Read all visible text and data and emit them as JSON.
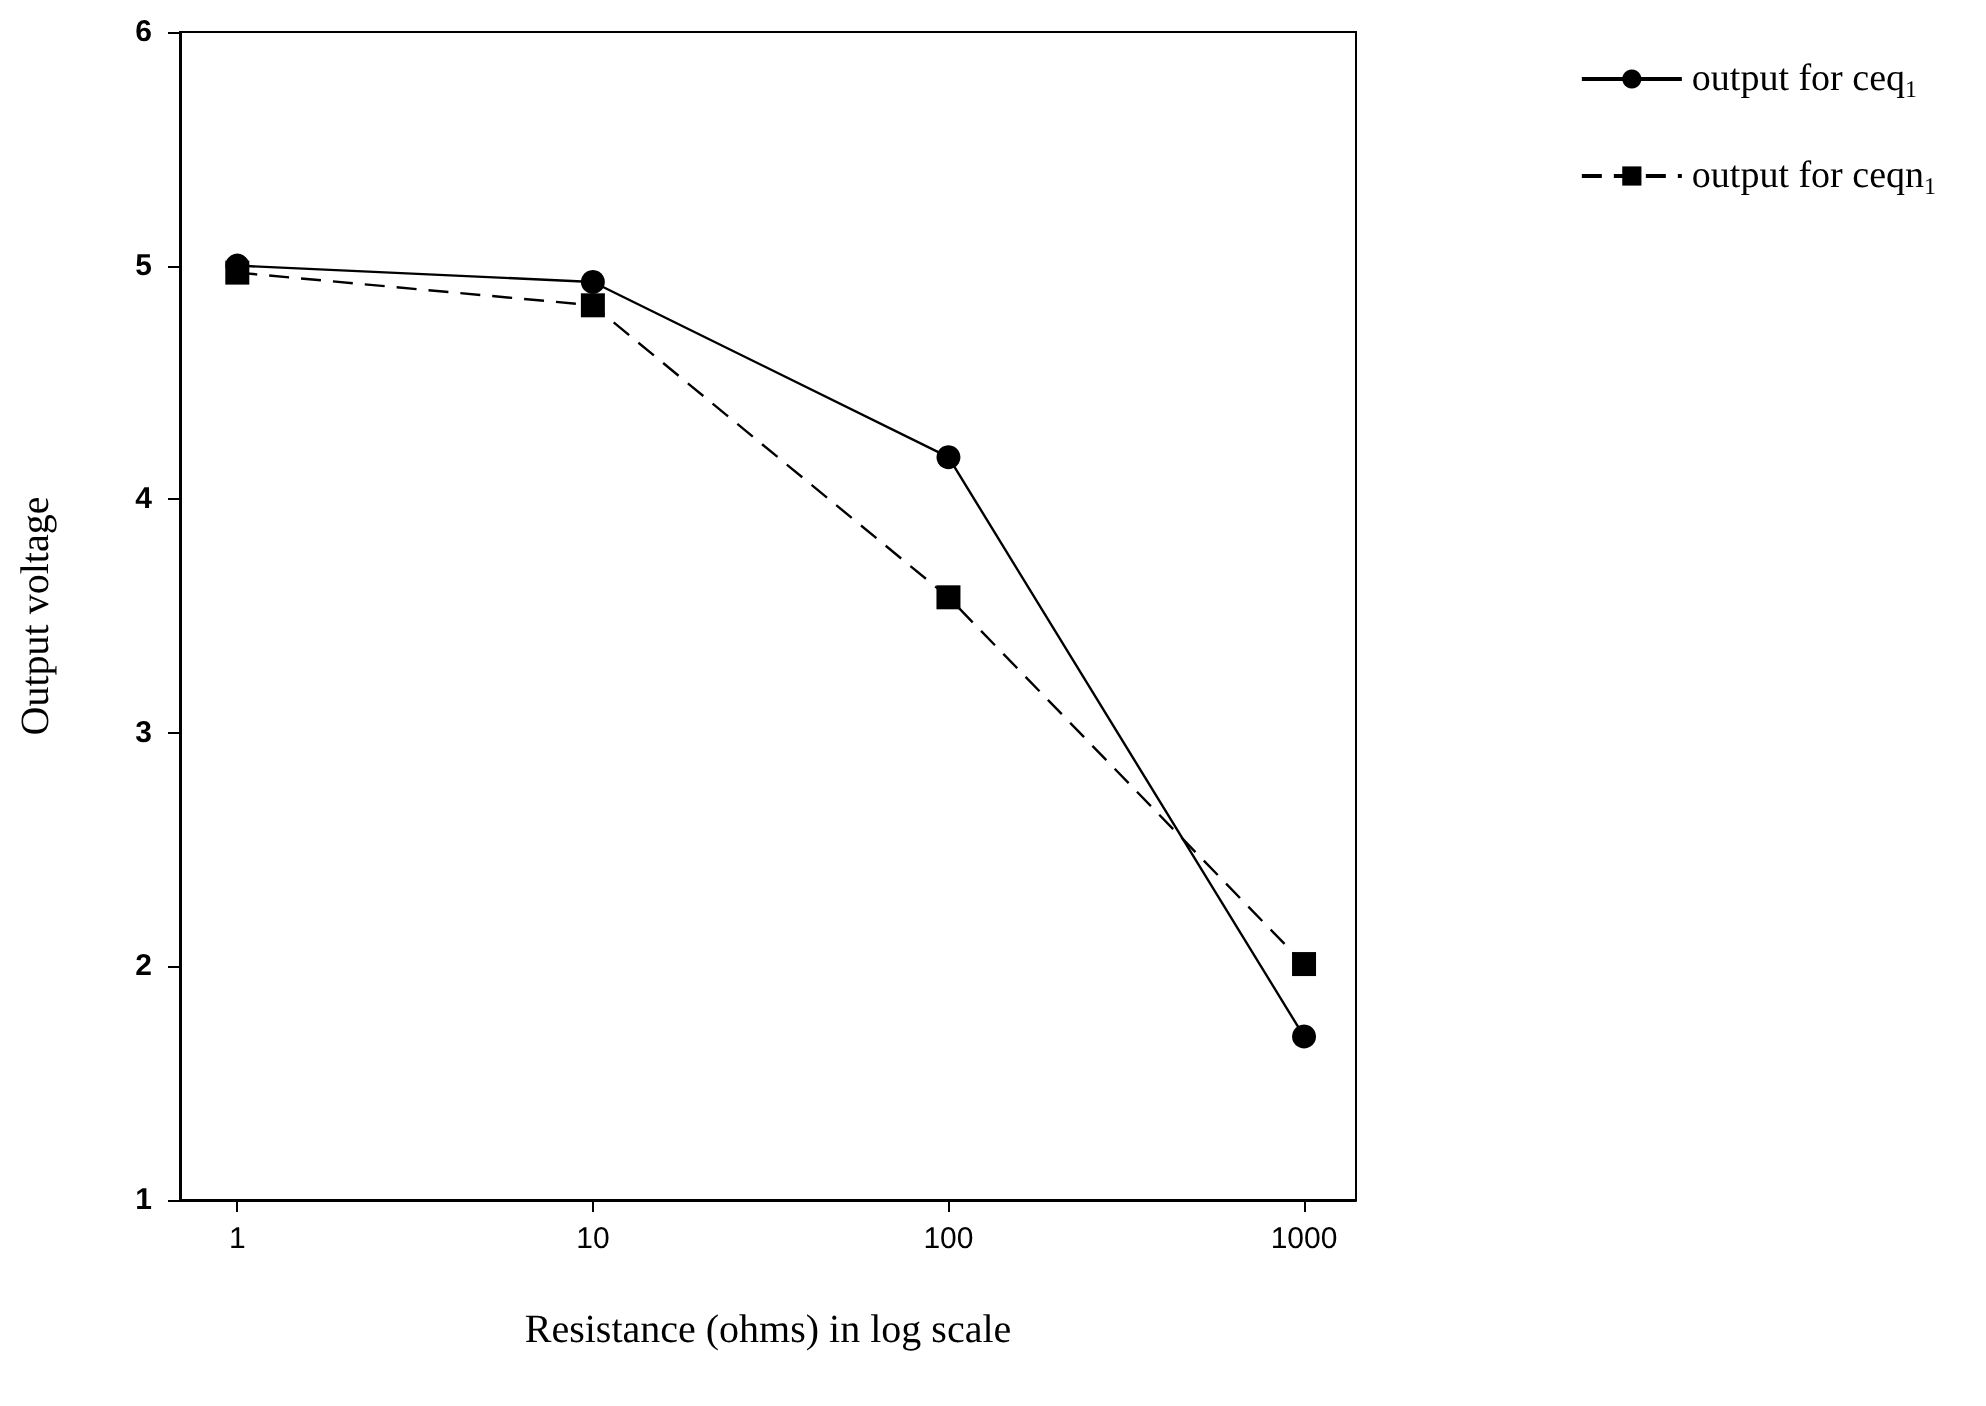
{
  "chart_data": {
    "type": "line",
    "xlabel": "Resistance (ohms) in log scale",
    "ylabel": "Output voltage",
    "x": [
      1,
      10,
      100,
      1000
    ],
    "log": "x",
    "xlim": [
      0.69,
      1400
    ],
    "xticks": [
      1,
      10,
      100,
      1000
    ],
    "ylim": [
      1,
      6
    ],
    "yticks": [
      1,
      2,
      3,
      4,
      5,
      6
    ],
    "grid": false,
    "legend": "top right",
    "series": [
      {
        "name": "output for ceq$_{1}$",
        "color": "#000000",
        "marker": "circle",
        "line_style": "solid",
        "values": [
          5.0,
          4.93,
          4.18,
          1.7
        ]
      },
      {
        "name": "output for ceqn$_{1}$",
        "color": "#000000",
        "marker": "square",
        "line_style": "dashed",
        "values": [
          4.97,
          4.83,
          3.58,
          2.01
        ]
      }
    ]
  }
}
